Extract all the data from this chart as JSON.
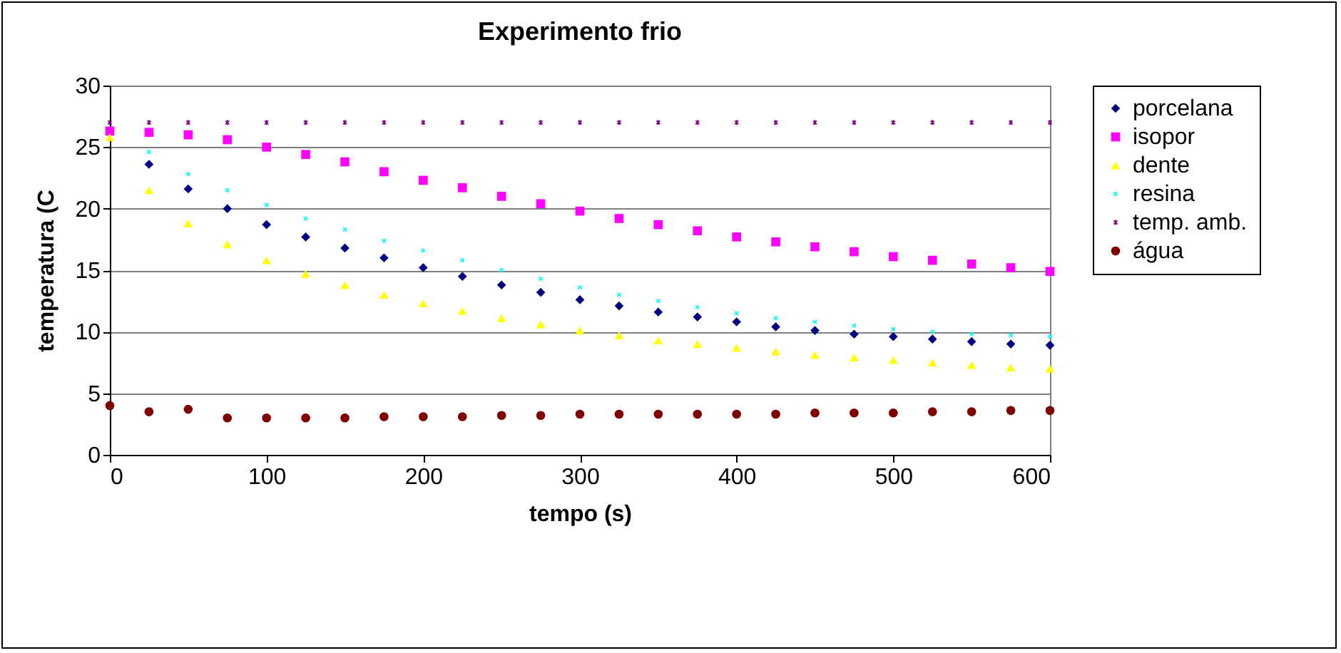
{
  "chart_data": {
    "type": "scatter",
    "title": "Experimento frio",
    "xlabel": "tempo (s)",
    "ylabel": "temperatura (C",
    "x": [
      0,
      25,
      50,
      75,
      100,
      125,
      150,
      175,
      200,
      225,
      250,
      275,
      300,
      325,
      350,
      375,
      400,
      425,
      450,
      475,
      500,
      525,
      550,
      575,
      600
    ],
    "xlim": [
      0,
      600
    ],
    "xticks": [
      0,
      100,
      200,
      300,
      400,
      500,
      600
    ],
    "ylim": [
      0,
      30
    ],
    "yticks": [
      0,
      5,
      10,
      15,
      20,
      25,
      30
    ],
    "grid": "y",
    "legend": "right",
    "series": [
      {
        "name": "porcelana",
        "color": "#000080",
        "marker": "diamond",
        "values": [
          null,
          23.6,
          21.6,
          20.0,
          18.7,
          17.7,
          16.8,
          16.0,
          15.2,
          14.5,
          13.8,
          13.2,
          12.6,
          12.1,
          11.6,
          11.2,
          10.8,
          10.4,
          10.1,
          9.8,
          9.6,
          9.4,
          9.2,
          9.0,
          8.9
        ]
      },
      {
        "name": "isopor",
        "color": "#ff00ff",
        "marker": "square",
        "values": [
          26.3,
          26.2,
          26.0,
          25.6,
          25.0,
          24.4,
          23.8,
          23.0,
          22.3,
          21.7,
          21.0,
          20.4,
          19.8,
          19.2,
          18.7,
          18.2,
          17.7,
          17.3,
          16.9,
          16.5,
          16.1,
          15.8,
          15.5,
          15.2,
          14.9
        ]
      },
      {
        "name": "dente",
        "color": "#ffff00",
        "marker": "triangle",
        "values": [
          25.8,
          21.5,
          18.8,
          17.1,
          15.8,
          14.7,
          13.8,
          13.0,
          12.3,
          11.7,
          11.1,
          10.6,
          10.1,
          9.7,
          9.3,
          9.0,
          8.7,
          8.4,
          8.1,
          7.9,
          7.7,
          7.5,
          7.3,
          7.1,
          7.0
        ]
      },
      {
        "name": "resina",
        "color": "#00ffff",
        "marker": "cross",
        "values": [
          null,
          24.6,
          22.8,
          21.5,
          20.3,
          19.2,
          18.3,
          17.4,
          16.6,
          15.8,
          15.0,
          14.3,
          13.6,
          13.0,
          12.5,
          12.0,
          11.5,
          11.1,
          10.8,
          10.5,
          10.2,
          10.0,
          9.8,
          9.7,
          9.6
        ]
      },
      {
        "name": "temp. amb.",
        "color": "#800080",
        "marker": "star",
        "values": [
          27,
          27,
          27,
          27,
          27,
          27,
          27,
          27,
          27,
          27,
          27,
          27,
          27,
          27,
          27,
          27,
          27,
          27,
          27,
          27,
          27,
          27,
          27,
          27,
          27
        ]
      },
      {
        "name": "água",
        "color": "#800000",
        "marker": "circle",
        "values": [
          4.0,
          3.5,
          3.7,
          3.0,
          3.0,
          3.0,
          3.0,
          3.1,
          3.1,
          3.1,
          3.2,
          3.2,
          3.3,
          3.3,
          3.3,
          3.3,
          3.3,
          3.3,
          3.4,
          3.4,
          3.4,
          3.5,
          3.5,
          3.6,
          3.6
        ]
      }
    ]
  }
}
